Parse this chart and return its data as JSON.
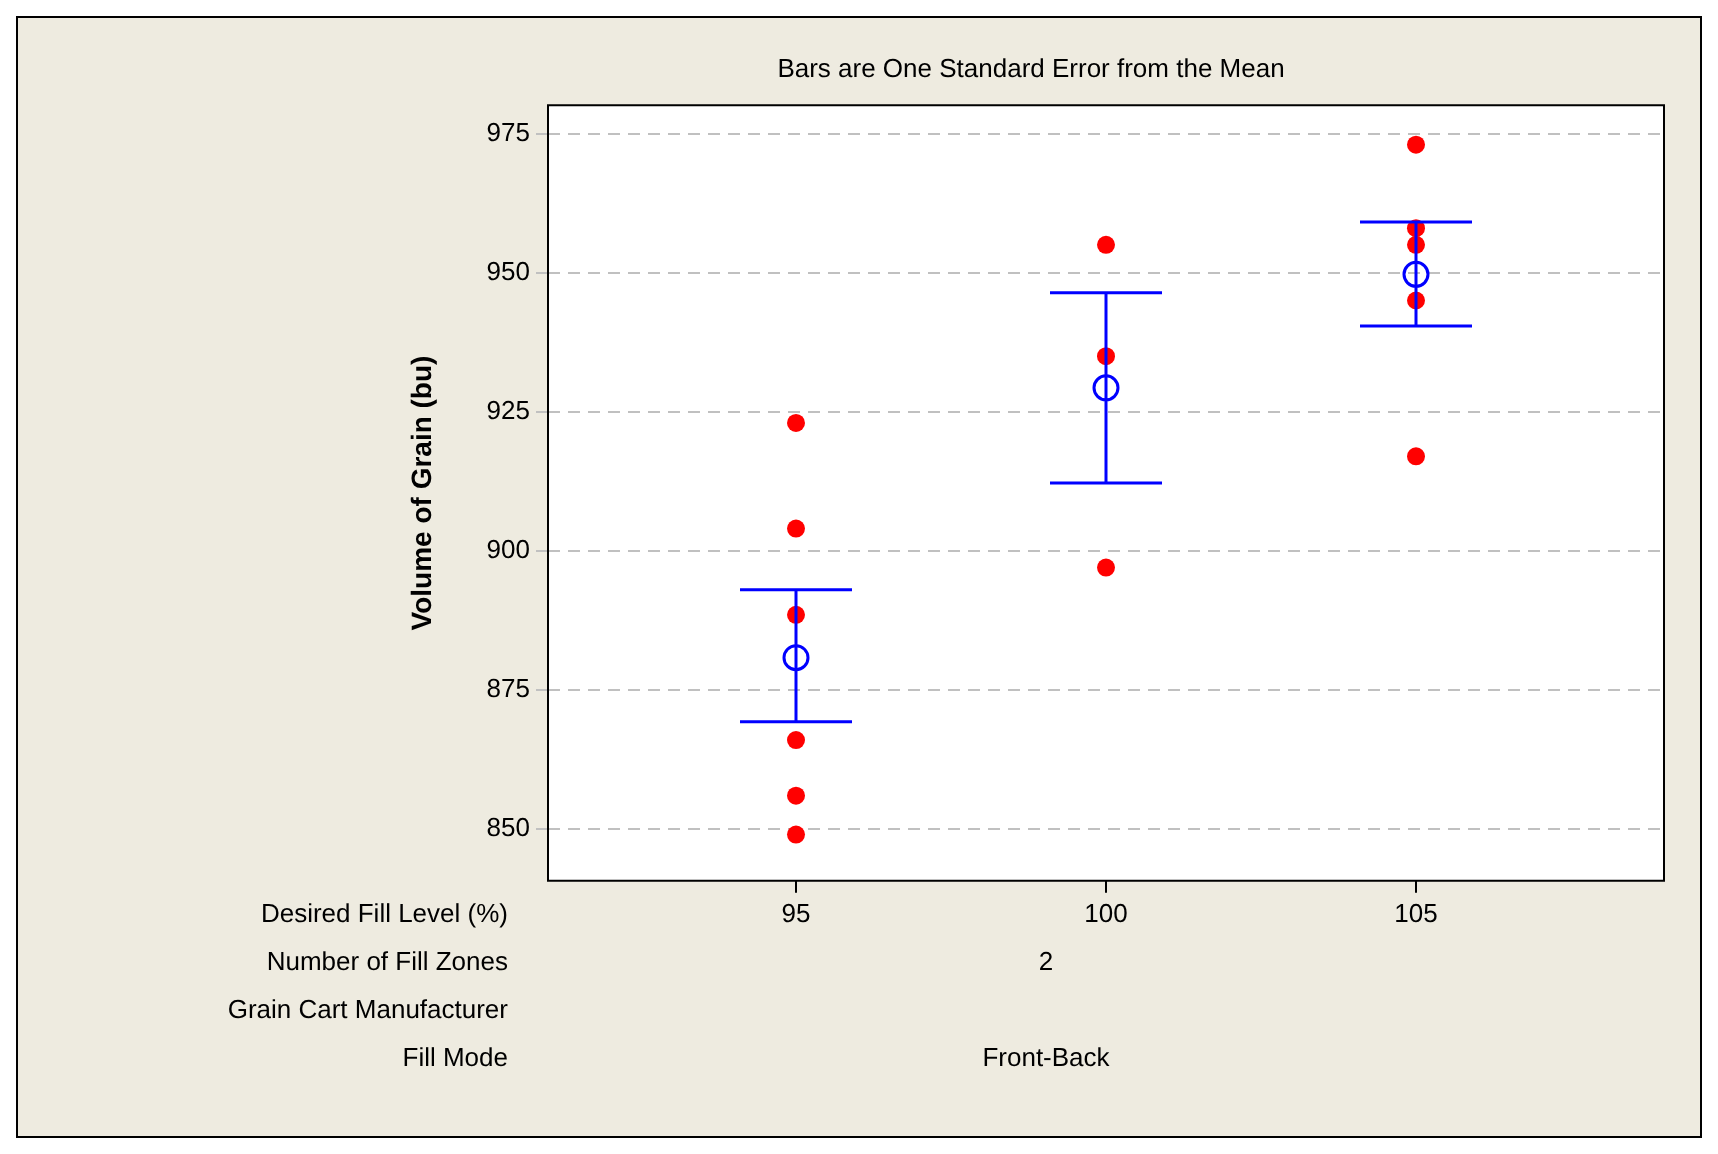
{
  "chart_data": {
    "type": "scatter",
    "title": "Bars are One Standard Error from the Mean",
    "xlabel": "Desired Fill Level (%)",
    "ylabel": "Volume of Grain (bu)",
    "xlim": [
      91,
      109
    ],
    "xticks": [
      95,
      100,
      105
    ],
    "ylim": [
      840.7,
      980.1
    ],
    "yticks": [
      850,
      875,
      900,
      925,
      950,
      975
    ],
    "grid": "y",
    "legend": false,
    "series": [
      {
        "color": "#ff0000",
        "marker": "circle",
        "x": [
          95,
          95,
          95,
          95,
          95,
          95,
          100,
          100,
          100,
          105,
          105,
          105,
          105,
          105
        ],
        "values": [
          923,
          904,
          888.5,
          866,
          856,
          849,
          955,
          935,
          897,
          973,
          958,
          955,
          945,
          917
        ]
      },
      {
        "color": "#0000ff",
        "marker": "circle",
        "x": [
          95,
          100,
          105
        ],
        "values": [
          880.8,
          929.3,
          949.7
        ],
        "errors": [
          [
            869.3,
            893
          ],
          [
            912.2,
            946.4
          ],
          [
            940.4,
            959.1
          ]
        ]
      }
    ],
    "annotations": [
      "Number of Fill Zones",
      "2",
      "Grain Cart Manufacturer",
      "Fill Mode",
      "Front-Back"
    ]
  }
}
